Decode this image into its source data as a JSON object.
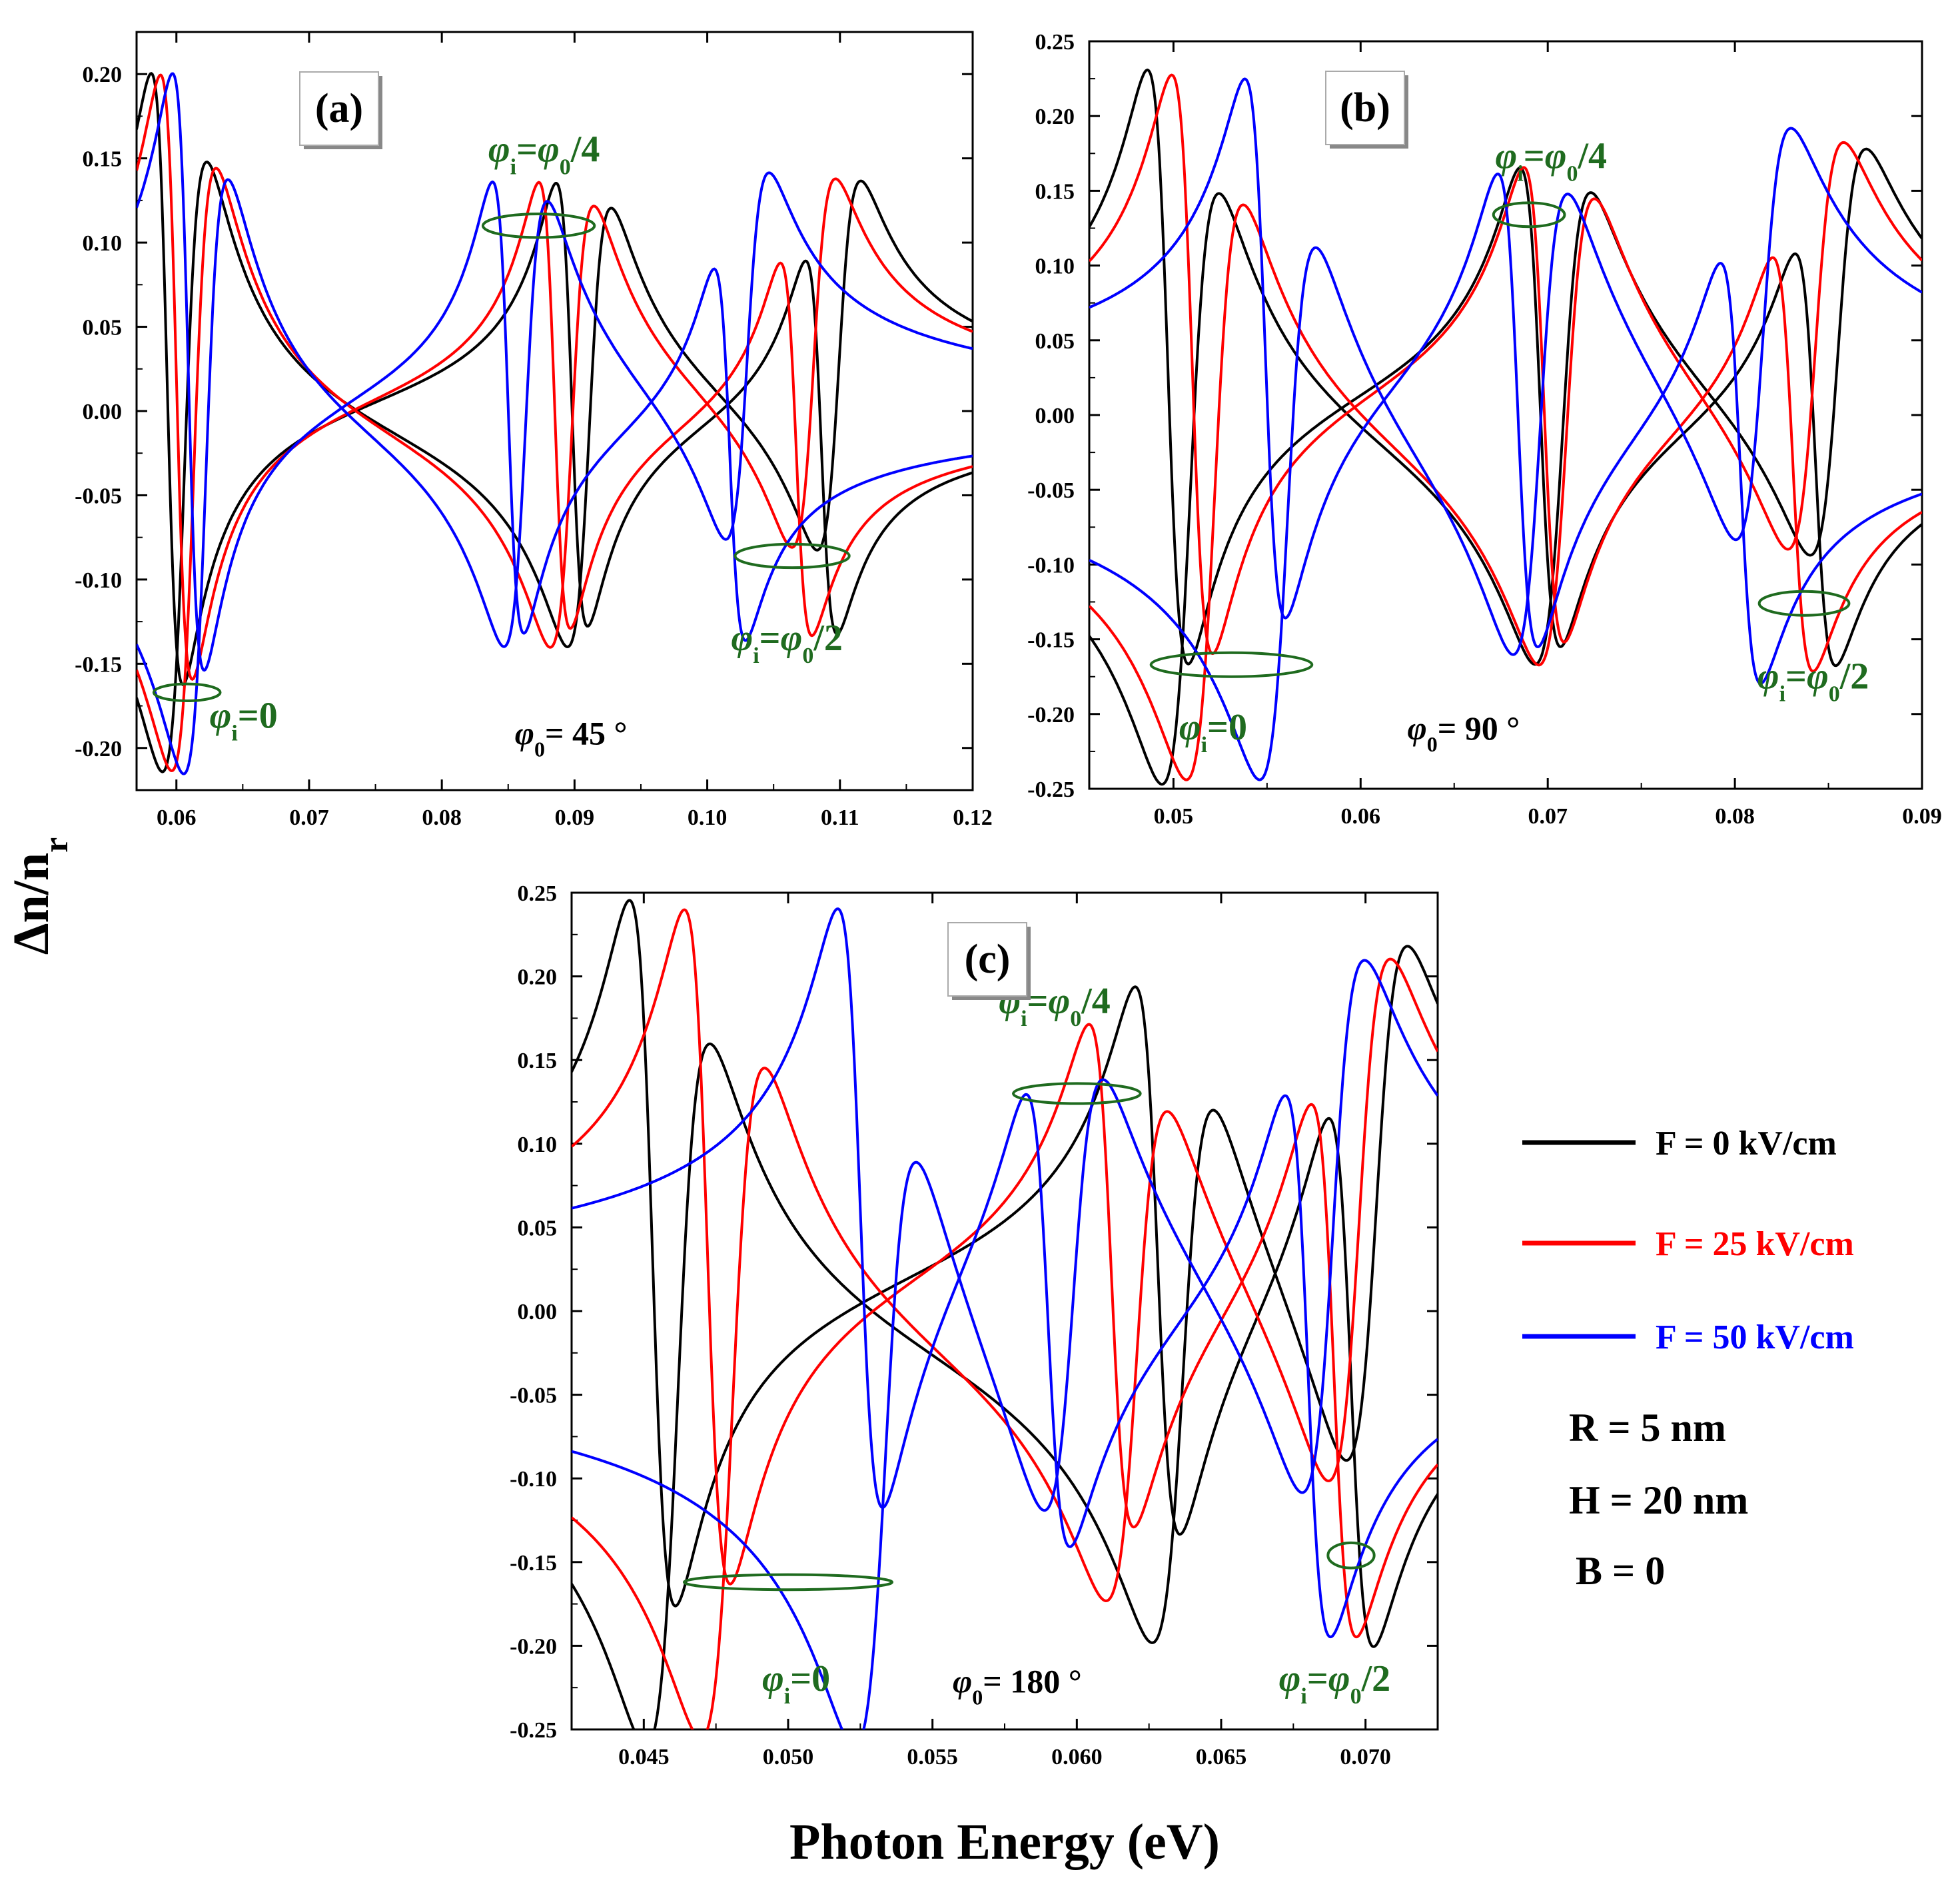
{
  "figure": {
    "ylabel": "Δn/nr",
    "xlabel": "Photon Energy (eV)",
    "series_names": [
      "F = 0 kV/cm",
      "F = 25 kV/cm",
      "F = 50 kV/cm"
    ],
    "series_colors": [
      "#000000",
      "#ff0000",
      "#0000ff"
    ],
    "annotation_color": "#1f6b1f",
    "params": [
      "R = 5 nm",
      "H = 20 nm",
      "B = 0"
    ]
  },
  "chart_data": [
    {
      "type": "line",
      "panel_label": "(a)",
      "phi0_label": "φ0= 45 °",
      "xlim": [
        0.057,
        0.12
      ],
      "ylim": [
        -0.225,
        0.225
      ],
      "xticks": [
        0.06,
        0.07,
        0.08,
        0.09,
        0.1,
        0.11,
        0.12
      ],
      "xtick_labels": [
        "0.06",
        "0.07",
        "0.08",
        "0.09",
        "0.10",
        "0.11",
        "0.12"
      ],
      "yticks": [
        -0.2,
        -0.15,
        -0.1,
        -0.05,
        0.0,
        0.05,
        0.1,
        0.15,
        0.2
      ],
      "ytick_labels": [
        "-0.20",
        "-0.15",
        "-0.10",
        "-0.05",
        "0.00",
        "0.05",
        "0.10",
        "0.15",
        "0.20"
      ],
      "resonances": [
        {
          "name": "F = 0 kV/cm",
          "centers": [
            0.0593,
            0.0898,
            0.1086
          ],
          "amplitudes": [
            0.182,
            0.133,
            0.112
          ],
          "widths": [
            0.0012,
            0.0012,
            0.0012
          ],
          "baseline": [
            0.003,
            -0.011
          ]
        },
        {
          "name": "F = 25 kV/cm",
          "centers": [
            0.06,
            0.0885,
            0.1067
          ],
          "amplitudes": [
            0.18,
            0.134,
            0.112
          ],
          "widths": [
            0.0012,
            0.0012,
            0.0012
          ],
          "baseline": [
            0.003,
            -0.011
          ]
        },
        {
          "name": "F = 50 kV/cm",
          "centers": [
            0.0609,
            0.085,
            0.1017
          ],
          "amplitudes": [
            0.178,
            0.136,
            0.112
          ],
          "widths": [
            0.0012,
            0.0012,
            0.0012
          ],
          "baseline": [
            0.003,
            -0.011
          ]
        }
      ],
      "annotations": [
        {
          "base": "φ",
          "sub": "i",
          "rest": "=0",
          "at": [
            0.0625,
            -0.188
          ]
        },
        {
          "base": "φ",
          "sub": "i",
          "rest": "=φ",
          "sub2": "0",
          "rest2": "/4",
          "at": [
            0.0835,
            0.148
          ]
        },
        {
          "base": "φ",
          "sub": "i",
          "rest": "=φ",
          "sub2": "0",
          "rest2": "/2",
          "at": [
            0.1018,
            -0.142
          ]
        }
      ],
      "ellipses": [
        {
          "center": [
            0.0608,
            -0.167
          ],
          "radii": [
            0.0025,
            0.005
          ]
        },
        {
          "center": [
            0.0873,
            0.11
          ],
          "radii": [
            0.0042,
            0.007
          ]
        },
        {
          "center": [
            0.1064,
            -0.086
          ],
          "radii": [
            0.0043,
            0.007
          ]
        }
      ],
      "phi0_at": [
        0.0855,
        -0.198
      ]
    },
    {
      "type": "line",
      "panel_label": "(b)",
      "phi0_label": "φ0= 90 °",
      "xlim": [
        0.0455,
        0.09
      ],
      "ylim": [
        -0.25,
        0.25
      ],
      "xticks": [
        0.05,
        0.06,
        0.07,
        0.08,
        0.09
      ],
      "xtick_labels": [
        "0.05",
        "0.06",
        "0.07",
        "0.08",
        "0.09"
      ],
      "yticks": [
        -0.25,
        -0.2,
        -0.15,
        -0.1,
        -0.05,
        0.0,
        0.05,
        0.1,
        0.15,
        0.2,
        0.25
      ],
      "ytick_labels": [
        "-0.25",
        "-0.20",
        "-0.15",
        "-0.10",
        "-0.05",
        "0.00",
        "0.05",
        "0.10",
        "0.15",
        "0.20",
        "0.25"
      ],
      "resonances": [
        {
          "name": "F = 0 kV/cm",
          "centers": [
            0.0497,
            0.0696,
            0.0843
          ],
          "amplitudes": [
            0.2,
            0.163,
            0.14
          ],
          "widths": [
            0.0011,
            0.0011,
            0.0011
          ],
          "baseline": [
            0.005,
            -0.012
          ]
        },
        {
          "name": "F = 25 kV/cm",
          "centers": [
            0.051,
            0.0698,
            0.0831
          ],
          "amplitudes": [
            0.195,
            0.162,
            0.141
          ],
          "widths": [
            0.0011,
            0.0011,
            0.0011
          ],
          "baseline": [
            0.005,
            -0.012
          ]
        },
        {
          "name": "F = 50 kV/cm",
          "centers": [
            0.0549,
            0.0684,
            0.0803
          ],
          "amplitudes": [
            0.183,
            0.163,
            0.144
          ],
          "widths": [
            0.0011,
            0.0011,
            0.0011
          ],
          "baseline": [
            0.005,
            -0.012
          ]
        }
      ],
      "annotations": [
        {
          "base": "φ",
          "sub": "i",
          "rest": "=0",
          "at": [
            0.0503,
            -0.217
          ]
        },
        {
          "base": "φ",
          "sub": "i",
          "rest": "=φ",
          "sub2": "0",
          "rest2": "/4",
          "at": [
            0.0672,
            0.165
          ]
        },
        {
          "base": "φ",
          "sub": "i",
          "rest": "=φ",
          "sub2": "0",
          "rest2": "/2",
          "at": [
            0.0812,
            -0.183
          ]
        }
      ],
      "ellipses": [
        {
          "center": [
            0.0531,
            -0.167
          ],
          "radii": [
            0.0043,
            0.008
          ]
        },
        {
          "center": [
            0.069,
            0.134
          ],
          "radii": [
            0.0019,
            0.008
          ]
        },
        {
          "center": [
            0.0837,
            -0.126
          ],
          "radii": [
            0.0024,
            0.008
          ]
        }
      ],
      "phi0_at": [
        0.0625,
        -0.217
      ]
    },
    {
      "type": "line",
      "panel_label": "(c)",
      "phi0_label": "φ0= 180 °",
      "xlim": [
        0.0425,
        0.0725
      ],
      "ylim": [
        -0.25,
        0.25
      ],
      "xticks": [
        0.045,
        0.05,
        0.055,
        0.06,
        0.065,
        0.07
      ],
      "xtick_labels": [
        "0.045",
        "0.050",
        "0.055",
        "0.060",
        "0.065",
        "0.070"
      ],
      "yticks": [
        -0.25,
        -0.2,
        -0.15,
        -0.1,
        -0.05,
        0.0,
        0.05,
        0.1,
        0.15,
        0.2,
        0.25
      ],
      "ytick_labels": [
        "-0.25",
        "-0.20",
        "-0.15",
        "-0.10",
        "-0.05",
        "0.00",
        "0.05",
        "0.10",
        "0.15",
        "0.20",
        "0.25"
      ],
      "resonances": [
        {
          "name": "F = 0 kV/cm",
          "centers": [
            0.0453,
            0.0628,
            0.0695
          ],
          "amplitudes": [
            0.212,
            0.169,
            0.163
          ],
          "widths": [
            0.0008,
            0.0008,
            0.0008
          ],
          "baseline": [
            0.008,
            -0.014
          ]
        },
        {
          "name": "F = 25 kV/cm",
          "centers": [
            0.0472,
            0.0612,
            0.0689
          ],
          "amplitudes": [
            0.203,
            0.155,
            0.163
          ],
          "widths": [
            0.0008,
            0.0008,
            0.0008
          ],
          "baseline": [
            0.008,
            -0.014
          ]
        },
        {
          "name": "F = 50 kV/cm",
          "centers": [
            0.0525,
            0.059,
            0.068
          ],
          "amplitudes": [
            0.184,
            0.143,
            0.165
          ],
          "widths": [
            0.0008,
            0.0008,
            0.0008
          ],
          "baseline": [
            0.008,
            -0.014
          ]
        }
      ],
      "annotations": [
        {
          "base": "φ",
          "sub": "i",
          "rest": "=0",
          "at": [
            0.0491,
            -0.227
          ]
        },
        {
          "base": "φ",
          "sub": "i",
          "rest": "=φ",
          "sub2": "0",
          "rest2": "/4",
          "at": [
            0.0573,
            0.178
          ]
        },
        {
          "base": "φ",
          "sub": "i",
          "rest": "=φ",
          "sub2": "0",
          "rest2": "/2",
          "at": [
            0.067,
            -0.227
          ]
        }
      ],
      "ellipses": [
        {
          "center": [
            0.05,
            -0.162
          ],
          "radii": [
            0.0036,
            0.0045
          ]
        },
        {
          "center": [
            0.06,
            0.13
          ],
          "radii": [
            0.0022,
            0.006
          ]
        },
        {
          "center": [
            0.0695,
            -0.146
          ],
          "radii": [
            0.0008,
            0.0075
          ]
        }
      ],
      "phi0_at": [
        0.0557,
        -0.228
      ]
    }
  ]
}
